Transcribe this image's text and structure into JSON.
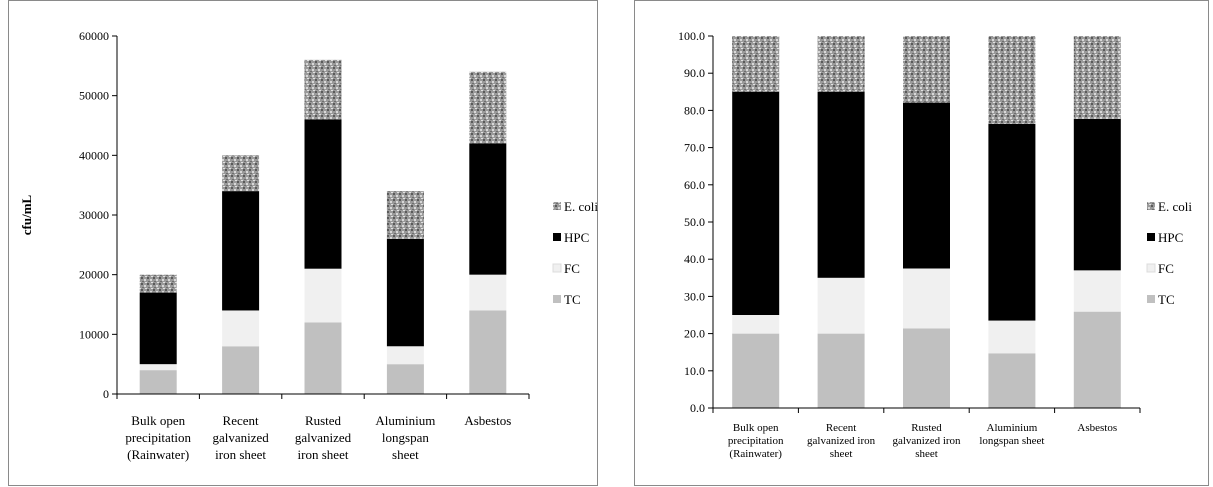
{
  "colors": {
    "TC": "#c0c0c0",
    "FC": "#f0f0f0",
    "HPC": "#000000",
    "E. coli": "pattern-speckled-gray"
  },
  "chart_data": [
    {
      "type": "bar",
      "stacked": true,
      "ylabel": "cfu/mL",
      "ylim": [
        0,
        60000
      ],
      "yticks": [
        "0",
        "10000",
        "20000",
        "30000",
        "40000",
        "50000",
        "60000"
      ],
      "categories": [
        [
          "Bulk open",
          "precipitation",
          "(Rainwater)"
        ],
        [
          "Recent",
          "galvanized",
          "iron sheet"
        ],
        [
          "Rusted",
          "galvanized",
          "iron sheet"
        ],
        [
          "Aluminium",
          "longspan",
          "sheet"
        ],
        [
          "Asbestos"
        ]
      ],
      "series": [
        {
          "name": "TC",
          "values": [
            4000,
            8000,
            12000,
            5000,
            14000
          ]
        },
        {
          "name": "FC",
          "values": [
            1000,
            6000,
            9000,
            3000,
            6000
          ]
        },
        {
          "name": "HPC",
          "values": [
            12000,
            20000,
            25000,
            18000,
            22000
          ]
        },
        {
          "name": "E. coli",
          "values": [
            3000,
            6000,
            10000,
            8000,
            12000
          ]
        }
      ],
      "legend": [
        "E. coli",
        "HPC",
        "FC",
        "TC"
      ],
      "legend_position": "right"
    },
    {
      "type": "bar",
      "stacked": true,
      "ylabel": "",
      "ylim": [
        0,
        100
      ],
      "yticks": [
        "0.0",
        "10.0",
        "20.0",
        "30.0",
        "40.0",
        "50.0",
        "60.0",
        "70.0",
        "80.0",
        "90.0",
        "100.0"
      ],
      "categories": [
        [
          "Bulk open",
          "precipitation",
          "(Rainwater)"
        ],
        [
          "Recent",
          "galvanized iron",
          "sheet"
        ],
        [
          "Rusted",
          "galvanized iron",
          "sheet"
        ],
        [
          "Aluminium",
          "longspan sheet"
        ],
        [
          "Asbestos"
        ]
      ],
      "series": [
        {
          "name": "TC",
          "values": [
            20.0,
            20.0,
            21.4,
            14.7,
            25.9
          ]
        },
        {
          "name": "FC",
          "values": [
            5.0,
            15.0,
            16.1,
            8.8,
            11.1
          ]
        },
        {
          "name": "HPC",
          "values": [
            60.0,
            50.0,
            44.6,
            52.9,
            40.7
          ]
        },
        {
          "name": "E. coli",
          "values": [
            15.0,
            15.0,
            17.9,
            23.6,
            22.3
          ]
        }
      ],
      "legend": [
        "E. coli",
        "HPC",
        "FC",
        "TC"
      ],
      "legend_position": "right"
    }
  ]
}
